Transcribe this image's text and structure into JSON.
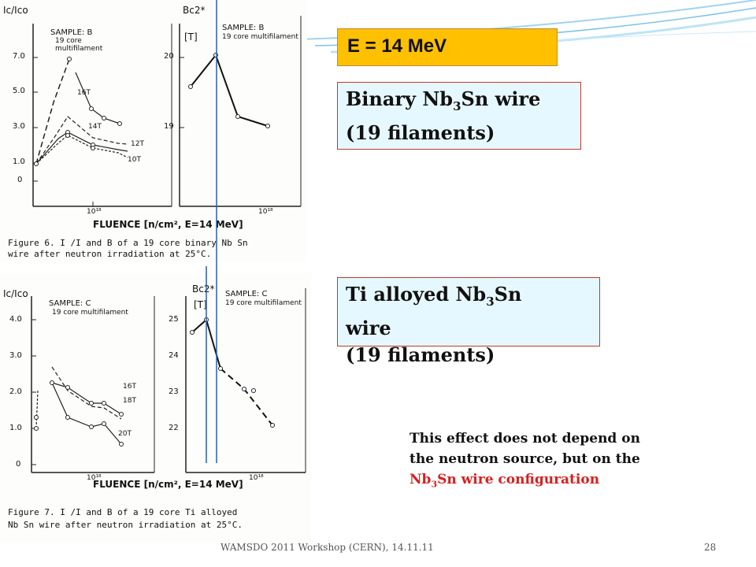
{
  "energy_label": "E = 14 MeV",
  "box_binary": {
    "line1_pre": "Binary Nb",
    "line1_sub": "3",
    "line1_post": "Sn wire",
    "line2": "(19 filaments)"
  },
  "box_ti": {
    "line1_pre": "Ti alloyed Nb",
    "line1_sub": "3",
    "line1_post": "Sn",
    "line2": "wire",
    "line3": "(19 filaments)"
  },
  "effect_note": {
    "line1": "This effect does not depend on",
    "line2": "the neutron source, but on the",
    "red_pre": "Nb",
    "red_sub": "3",
    "red_post": "Sn wire configuration"
  },
  "footer": {
    "workshop": "WAMSDO 2011 Workshop (CERN), 14.11.11",
    "page": "28"
  },
  "figure6": {
    "ic_axis": "Ic/Ico",
    "bc2_axis": "Bc2*",
    "bc2_unit": "[T]",
    "sample_ic": "SAMPLE: B",
    "sample_ic_sub": "19 core",
    "sample_ic_sub2": "multifilament",
    "sample_bc": "SAMPLE: B",
    "sample_bc_sub": "19 core multifilament",
    "ic_ticks": [
      "7.0",
      "5.0",
      "3.0",
      "1.0",
      "0"
    ],
    "bc_ticks": [
      "20",
      "19"
    ],
    "x_tick": "10¹⁸",
    "x_tick2": "10¹⁸",
    "curve_labels": [
      "16T",
      "14T",
      "12T",
      "10T"
    ],
    "xlabel": "FLUENCE [n/cm², E=14 MeV]",
    "caption1": "Figure 6.  I /I    and B    of a 19 core binary Nb Sn",
    "caption2": "wire after neutron irradiation at 25°C."
  },
  "figure7": {
    "ic_axis": "Ic/Ico",
    "bc2_axis": "Bc2*",
    "bc2_unit": "[T]",
    "sample_ic": "SAMPLE: C",
    "sample_ic_sub": "19 core multifilament",
    "sample_bc": "SAMPLE: C",
    "sample_bc_sub": "19 core multifilament",
    "ic_ticks": [
      "4.0",
      "3.0",
      "2.0",
      "1.0",
      "0"
    ],
    "bc_ticks": [
      "25",
      "24",
      "23",
      "22"
    ],
    "x_tick": "10¹⁸",
    "x_tick2": "10¹⁸",
    "curve_labels": [
      "16T",
      "18T",
      "20T"
    ],
    "xlabel": "FLUENCE [n/cm², E=14 MeV]",
    "caption1": "Figure 7.  I /I    and B    of a 19 core Ti alloyed",
    "caption2": "Nb Sn wire after neutron irradiation at 25°C."
  }
}
